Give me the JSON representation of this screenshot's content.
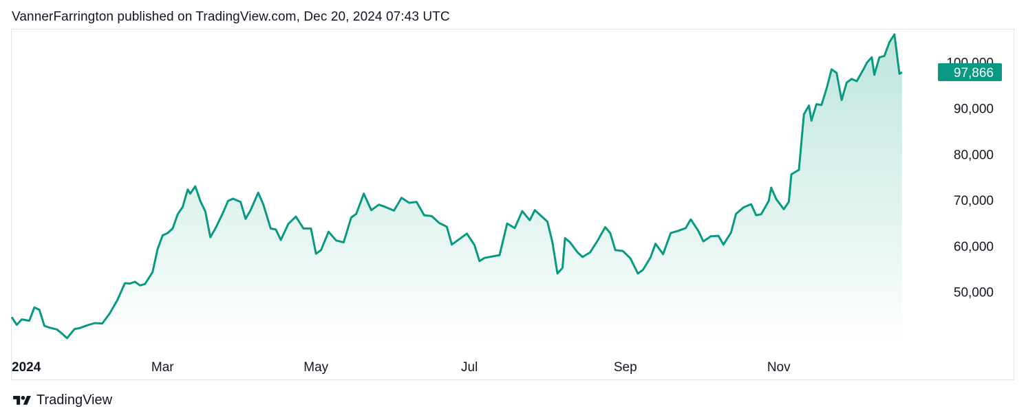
{
  "publisher_line": "VannerFarrington published on TradingView.com, Dec 20, 2024 07:43 UTC",
  "footer": {
    "brand": "TradingView",
    "logo_icon": "tradingview-logo-icon"
  },
  "colors": {
    "line": "#089981",
    "fill_top": "#b6e3d9",
    "fill_bottom": "#ffffff",
    "label_bg": "#089981",
    "text": "#131722",
    "border": "#e0e3eb"
  },
  "chart_data": {
    "type": "area",
    "title": "",
    "xlabel": "",
    "ylabel": "",
    "x_tick_labels": [
      "2024",
      "Mar",
      "May",
      "Jul",
      "Sep",
      "Nov"
    ],
    "x_tick_dates": [
      "2024-01-01",
      "2024-03-01",
      "2024-05-01",
      "2024-07-01",
      "2024-09-01",
      "2024-11-01"
    ],
    "y_ticks": [
      50000,
      60000,
      70000,
      80000,
      90000,
      100000
    ],
    "y_tick_labels": [
      "50,000",
      "60,000",
      "70,000",
      "80,000",
      "90,000",
      "100,000"
    ],
    "ylim": [
      39000,
      107000
    ],
    "xlim": [
      "2024-01-01",
      "2024-12-31"
    ],
    "last_value": 97866,
    "last_value_label": "97,866",
    "grid": false,
    "series": [
      {
        "values": [
          [
            "2024-01-01",
            44500
          ],
          [
            "2024-01-03",
            42800
          ],
          [
            "2024-01-05",
            44000
          ],
          [
            "2024-01-08",
            43700
          ],
          [
            "2024-01-10",
            46600
          ],
          [
            "2024-01-12",
            46100
          ],
          [
            "2024-01-14",
            42600
          ],
          [
            "2024-01-16",
            42200
          ],
          [
            "2024-01-19",
            41800
          ],
          [
            "2024-01-21",
            40900
          ],
          [
            "2024-01-23",
            39900
          ],
          [
            "2024-01-26",
            41900
          ],
          [
            "2024-01-28",
            42100
          ],
          [
            "2024-01-31",
            42700
          ],
          [
            "2024-02-03",
            43200
          ],
          [
            "2024-02-06",
            43100
          ],
          [
            "2024-02-09",
            45300
          ],
          [
            "2024-02-12",
            48200
          ],
          [
            "2024-02-15",
            51900
          ],
          [
            "2024-02-17",
            51800
          ],
          [
            "2024-02-19",
            52200
          ],
          [
            "2024-02-21",
            51400
          ],
          [
            "2024-02-23",
            51700
          ],
          [
            "2024-02-26",
            54300
          ],
          [
            "2024-02-28",
            59300
          ],
          [
            "2024-03-01",
            62300
          ],
          [
            "2024-03-03",
            62800
          ],
          [
            "2024-03-05",
            63800
          ],
          [
            "2024-03-07",
            66900
          ],
          [
            "2024-03-09",
            68500
          ],
          [
            "2024-03-11",
            72300
          ],
          [
            "2024-03-12",
            71400
          ],
          [
            "2024-03-14",
            73000
          ],
          [
            "2024-03-16",
            69800
          ],
          [
            "2024-03-18",
            67500
          ],
          [
            "2024-03-20",
            61900
          ],
          [
            "2024-03-22",
            63800
          ],
          [
            "2024-03-25",
            67200
          ],
          [
            "2024-03-27",
            69800
          ],
          [
            "2024-03-29",
            70300
          ],
          [
            "2024-04-01",
            69600
          ],
          [
            "2024-04-03",
            65900
          ],
          [
            "2024-04-05",
            67800
          ],
          [
            "2024-04-08",
            71600
          ],
          [
            "2024-04-10",
            69100
          ],
          [
            "2024-04-13",
            63800
          ],
          [
            "2024-04-15",
            63600
          ],
          [
            "2024-04-17",
            61300
          ],
          [
            "2024-04-20",
            64800
          ],
          [
            "2024-04-23",
            66400
          ],
          [
            "2024-04-26",
            63800
          ],
          [
            "2024-04-29",
            63800
          ],
          [
            "2024-05-01",
            58300
          ],
          [
            "2024-05-03",
            59100
          ],
          [
            "2024-05-06",
            63100
          ],
          [
            "2024-05-09",
            61200
          ],
          [
            "2024-05-12",
            60800
          ],
          [
            "2024-05-15",
            66200
          ],
          [
            "2024-05-17",
            67000
          ],
          [
            "2024-05-20",
            71400
          ],
          [
            "2024-05-23",
            67800
          ],
          [
            "2024-05-26",
            69000
          ],
          [
            "2024-05-29",
            68400
          ],
          [
            "2024-06-01",
            67700
          ],
          [
            "2024-06-04",
            70500
          ],
          [
            "2024-06-07",
            69400
          ],
          [
            "2024-06-10",
            69600
          ],
          [
            "2024-06-13",
            66700
          ],
          [
            "2024-06-16",
            66500
          ],
          [
            "2024-06-19",
            65000
          ],
          [
            "2024-06-22",
            64200
          ],
          [
            "2024-06-24",
            60300
          ],
          [
            "2024-06-27",
            61500
          ],
          [
            "2024-06-30",
            62700
          ],
          [
            "2024-07-03",
            60200
          ],
          [
            "2024-07-05",
            56700
          ],
          [
            "2024-07-07",
            57400
          ],
          [
            "2024-07-10",
            57700
          ],
          [
            "2024-07-13",
            58000
          ],
          [
            "2024-07-16",
            64900
          ],
          [
            "2024-07-19",
            63900
          ],
          [
            "2024-07-22",
            67600
          ],
          [
            "2024-07-25",
            65600
          ],
          [
            "2024-07-27",
            67800
          ],
          [
            "2024-07-29",
            66800
          ],
          [
            "2024-08-01",
            65300
          ],
          [
            "2024-08-03",
            60800
          ],
          [
            "2024-08-05",
            54000
          ],
          [
            "2024-08-07",
            55200
          ],
          [
            "2024-08-08",
            61700
          ],
          [
            "2024-08-10",
            60800
          ],
          [
            "2024-08-13",
            58600
          ],
          [
            "2024-08-15",
            57600
          ],
          [
            "2024-08-18",
            58600
          ],
          [
            "2024-08-21",
            61200
          ],
          [
            "2024-08-24",
            64100
          ],
          [
            "2024-08-26",
            62800
          ],
          [
            "2024-08-28",
            59100
          ],
          [
            "2024-08-31",
            58900
          ],
          [
            "2024-09-03",
            57300
          ],
          [
            "2024-09-06",
            54000
          ],
          [
            "2024-09-08",
            54800
          ],
          [
            "2024-09-11",
            57500
          ],
          [
            "2024-09-13",
            60500
          ],
          [
            "2024-09-16",
            58200
          ],
          [
            "2024-09-19",
            62800
          ],
          [
            "2024-09-22",
            63300
          ],
          [
            "2024-09-25",
            63900
          ],
          [
            "2024-09-27",
            65800
          ],
          [
            "2024-09-30",
            63300
          ],
          [
            "2024-10-02",
            61000
          ],
          [
            "2024-10-05",
            62100
          ],
          [
            "2024-10-08",
            62200
          ],
          [
            "2024-10-10",
            60300
          ],
          [
            "2024-10-13",
            62900
          ],
          [
            "2024-10-15",
            67000
          ],
          [
            "2024-10-18",
            68400
          ],
          [
            "2024-10-21",
            69100
          ],
          [
            "2024-10-23",
            66700
          ],
          [
            "2024-10-25",
            66900
          ],
          [
            "2024-10-28",
            69800
          ],
          [
            "2024-10-29",
            72700
          ],
          [
            "2024-10-31",
            70200
          ],
          [
            "2024-11-03",
            68000
          ],
          [
            "2024-11-05",
            69600
          ],
          [
            "2024-11-06",
            75600
          ],
          [
            "2024-11-09",
            76600
          ],
          [
            "2024-11-11",
            88700
          ],
          [
            "2024-11-13",
            90600
          ],
          [
            "2024-11-14",
            87300
          ],
          [
            "2024-11-16",
            90900
          ],
          [
            "2024-11-18",
            90700
          ],
          [
            "2024-11-20",
            94300
          ],
          [
            "2024-11-22",
            98500
          ],
          [
            "2024-11-24",
            97700
          ],
          [
            "2024-11-26",
            91800
          ],
          [
            "2024-11-28",
            95600
          ],
          [
            "2024-11-30",
            96400
          ],
          [
            "2024-12-02",
            95900
          ],
          [
            "2024-12-05",
            98800
          ],
          [
            "2024-12-06",
            99900
          ],
          [
            "2024-12-08",
            101100
          ],
          [
            "2024-12-09",
            97300
          ],
          [
            "2024-12-11",
            101100
          ],
          [
            "2024-12-13",
            101400
          ],
          [
            "2024-12-15",
            104400
          ],
          [
            "2024-12-17",
            106100
          ],
          [
            "2024-12-19",
            97500
          ],
          [
            "2024-12-20",
            97866
          ]
        ]
      }
    ]
  }
}
